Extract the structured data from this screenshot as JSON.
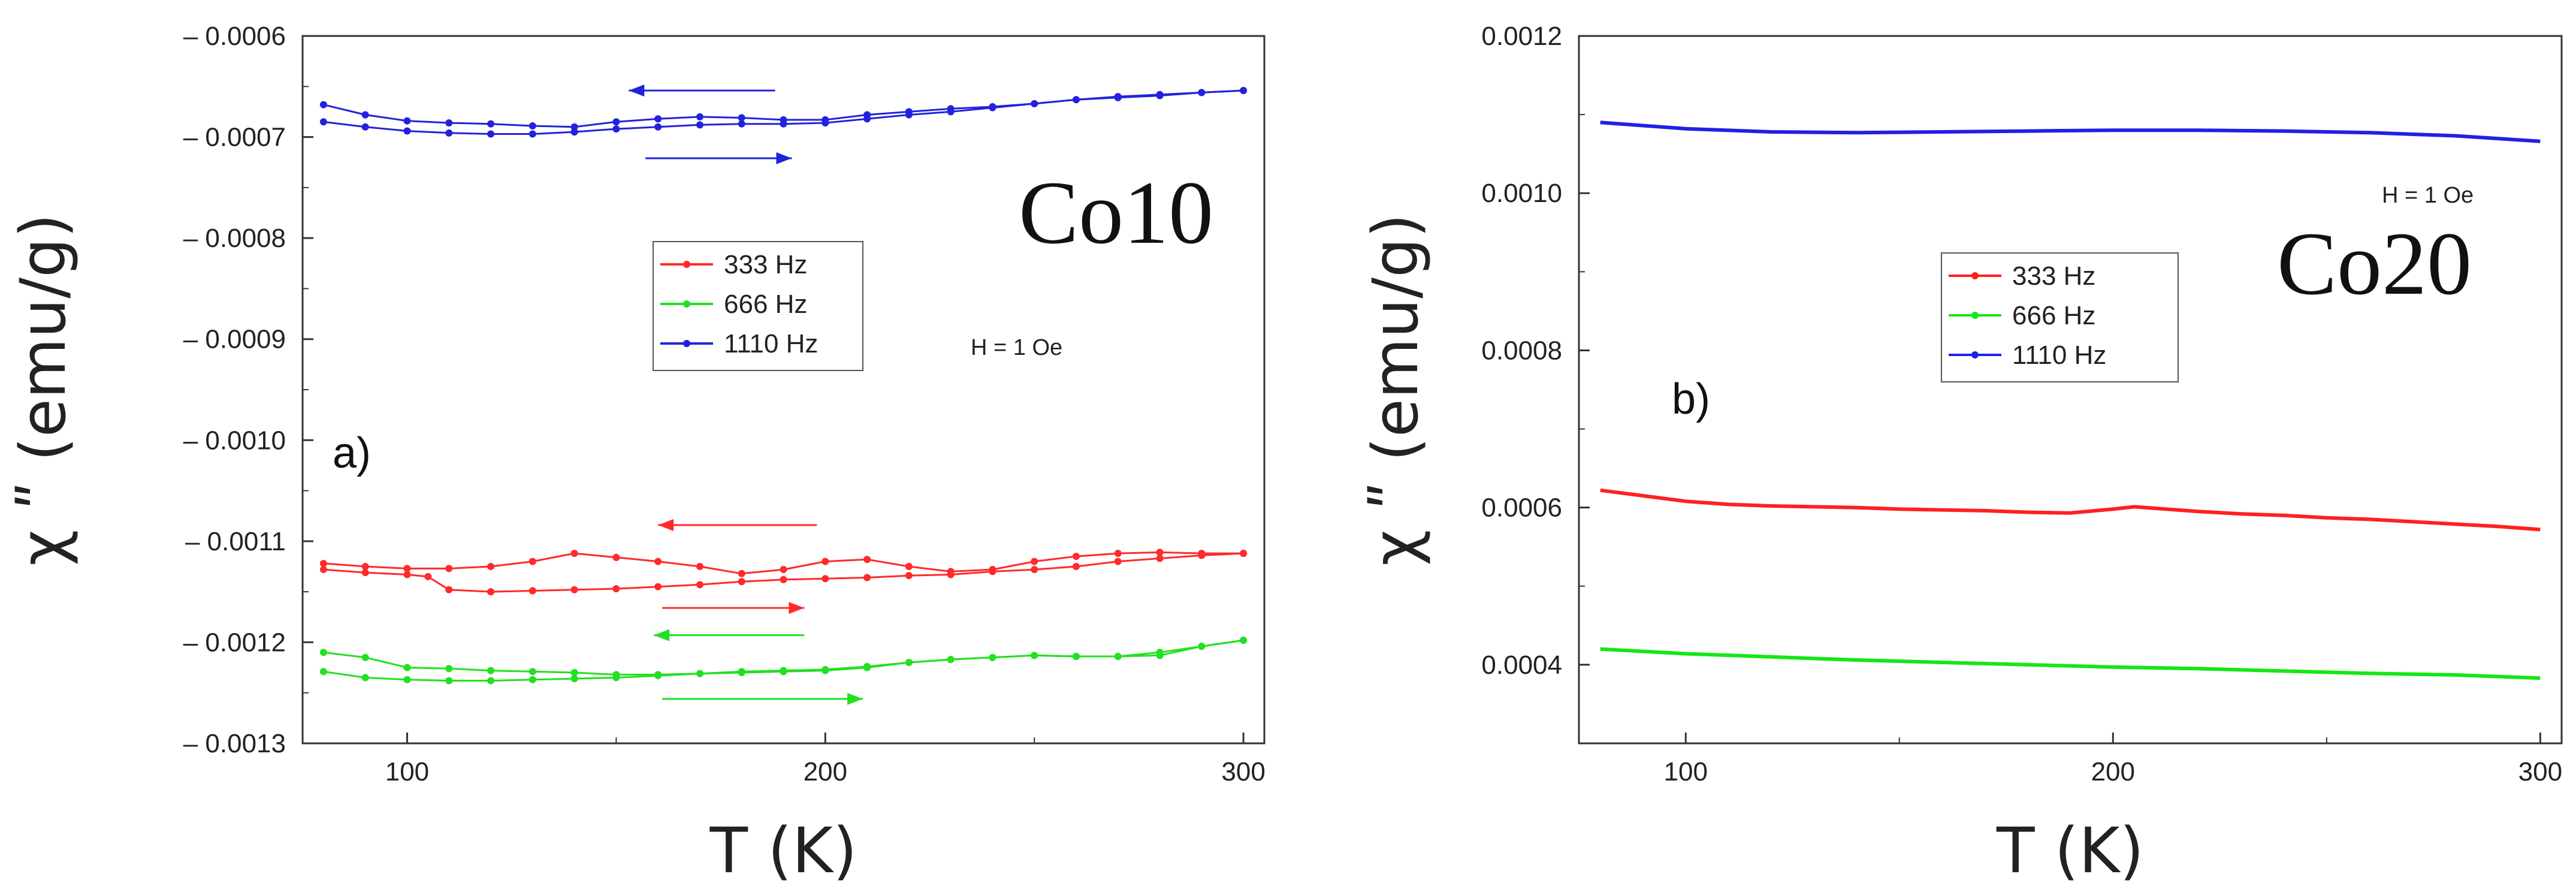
{
  "chart_data": [
    {
      "type": "line",
      "panel_label": "a)",
      "sample": "Co10",
      "field": "H = 1 Oe",
      "xlabel": "T  (K)",
      "ylabel": "χ ʺ  (emu/g)",
      "xlim": [
        75,
        305
      ],
      "ylim": [
        -0.0013,
        -0.0006
      ],
      "xticks": [
        100,
        200,
        300
      ],
      "xtick_labels": [
        "100",
        "200",
        "300"
      ],
      "yticks": [
        -0.0006,
        -0.0007,
        -0.0008,
        -0.0009,
        -0.001,
        -0.0011,
        -0.0012,
        -0.0013
      ],
      "ytick_labels": [
        "– 0.0006",
        "– 0.0007",
        "– 0.0008",
        "– 0.0009",
        "– 0.0010",
        "– 0.0011",
        "– 0.0012",
        "– 0.0013"
      ],
      "legend": [
        "333   Hz",
        "666   Hz",
        "1110 Hz"
      ],
      "series": [
        {
          "name": "333 Hz (cooling)",
          "color": "#ff2a2a",
          "markers": true,
          "x": [
            80,
            90,
            100,
            110,
            120,
            130,
            140,
            150,
            160,
            170,
            180,
            190,
            200,
            210,
            220,
            230,
            240,
            250,
            260,
            270,
            280,
            290,
            300
          ],
          "y": [
            -0.001122,
            -0.001125,
            -0.001127,
            -0.001127,
            -0.001125,
            -0.00112,
            -0.001112,
            -0.001116,
            -0.00112,
            -0.001125,
            -0.001132,
            -0.001128,
            -0.00112,
            -0.001118,
            -0.001125,
            -0.00113,
            -0.001128,
            -0.00112,
            -0.001115,
            -0.001112,
            -0.001111,
            -0.001112,
            -0.001112
          ]
        },
        {
          "name": "333 Hz (heating)",
          "color": "#ff2a2a",
          "markers": true,
          "x": [
            80,
            90,
            100,
            105,
            110,
            120,
            130,
            140,
            150,
            160,
            170,
            180,
            190,
            200,
            210,
            220,
            230,
            240,
            250,
            260,
            270,
            280,
            290,
            300
          ],
          "y": [
            -0.001128,
            -0.001131,
            -0.001133,
            -0.001135,
            -0.001148,
            -0.00115,
            -0.001149,
            -0.001148,
            -0.001147,
            -0.001145,
            -0.001143,
            -0.00114,
            -0.001138,
            -0.001137,
            -0.001136,
            -0.001134,
            -0.001133,
            -0.00113,
            -0.001128,
            -0.001125,
            -0.00112,
            -0.001117,
            -0.001114,
            -0.001112
          ]
        },
        {
          "name": "666 Hz (cooling)",
          "color": "#22e022",
          "markers": true,
          "x": [
            80,
            90,
            100,
            110,
            120,
            130,
            140,
            150,
            160,
            170,
            180,
            190,
            200,
            210,
            220,
            230,
            240,
            250,
            260,
            270,
            280,
            290,
            300
          ],
          "y": [
            -0.00121,
            -0.001215,
            -0.001225,
            -0.001226,
            -0.001228,
            -0.001229,
            -0.00123,
            -0.001232,
            -0.001232,
            -0.001231,
            -0.00123,
            -0.001229,
            -0.001228,
            -0.001225,
            -0.00122,
            -0.001217,
            -0.001215,
            -0.001213,
            -0.001214,
            -0.001214,
            -0.001213,
            -0.001204,
            -0.001198
          ]
        },
        {
          "name": "666 Hz (heating)",
          "color": "#22e022",
          "markers": true,
          "x": [
            80,
            90,
            100,
            110,
            120,
            130,
            140,
            150,
            160,
            170,
            180,
            190,
            200,
            210,
            220,
            230,
            240,
            250,
            260,
            270,
            280,
            290,
            300
          ],
          "y": [
            -0.001229,
            -0.001235,
            -0.001237,
            -0.001238,
            -0.001238,
            -0.001237,
            -0.001236,
            -0.001235,
            -0.001233,
            -0.001231,
            -0.001229,
            -0.001228,
            -0.001227,
            -0.001224,
            -0.00122,
            -0.001217,
            -0.001215,
            -0.001213,
            -0.001214,
            -0.001214,
            -0.00121,
            -0.001204,
            -0.001198
          ]
        },
        {
          "name": "1110 Hz (cooling)",
          "color": "#2222dd",
          "markers": true,
          "x": [
            80,
            90,
            100,
            110,
            120,
            130,
            140,
            150,
            160,
            170,
            180,
            190,
            200,
            210,
            220,
            230,
            240,
            250,
            260,
            270,
            280,
            290,
            300
          ],
          "y": [
            -0.000668,
            -0.000678,
            -0.000684,
            -0.000686,
            -0.000687,
            -0.000689,
            -0.00069,
            -0.000685,
            -0.000682,
            -0.00068,
            -0.000681,
            -0.000683,
            -0.000683,
            -0.000678,
            -0.000675,
            -0.000672,
            -0.00067,
            -0.000667,
            -0.000663,
            -0.000661,
            -0.000659,
            -0.000656,
            -0.000654
          ]
        },
        {
          "name": "1110 Hz (heating)",
          "color": "#2222dd",
          "markers": true,
          "x": [
            80,
            90,
            100,
            110,
            120,
            130,
            140,
            150,
            160,
            170,
            180,
            190,
            200,
            210,
            220,
            230,
            240,
            250,
            260,
            270,
            280,
            290,
            300
          ],
          "y": [
            -0.000685,
            -0.00069,
            -0.000694,
            -0.000696,
            -0.000697,
            -0.000697,
            -0.000695,
            -0.000692,
            -0.00069,
            -0.000688,
            -0.000687,
            -0.000687,
            -0.000686,
            -0.000682,
            -0.000678,
            -0.000675,
            -0.000671,
            -0.000667,
            -0.000663,
            -0.00066,
            -0.000658,
            -0.000656,
            -0.000654
          ]
        }
      ],
      "arrows": [
        {
          "color": "#2222dd",
          "direction": "left",
          "x": [
            153,
            188
          ],
          "y": -0.000654
        },
        {
          "color": "#2222dd",
          "direction": "right",
          "x": [
            157,
            192
          ],
          "y": -0.000721
        },
        {
          "color": "#ff2a2a",
          "direction": "left",
          "x": [
            160,
            198
          ],
          "y": -0.001084
        },
        {
          "color": "#ff2a2a",
          "direction": "right",
          "x": [
            161,
            195
          ],
          "y": -0.001166
        },
        {
          "color": "#22e022",
          "direction": "left",
          "x": [
            159,
            195
          ],
          "y": -0.001193
        },
        {
          "color": "#22e022",
          "direction": "right",
          "x": [
            161,
            209
          ],
          "y": -0.001256
        }
      ]
    },
    {
      "type": "line",
      "panel_label": "b)",
      "sample": "Co20",
      "field": "H = 1 Oe",
      "xlabel": "T  (K)",
      "ylabel": "χ ʺ  (emu/g)",
      "xlim": [
        75,
        305
      ],
      "ylim": [
        0.0003,
        0.0012
      ],
      "xticks": [
        100,
        200,
        300
      ],
      "xtick_labels": [
        "100",
        "200",
        "300"
      ],
      "yticks": [
        0.0004,
        0.0006,
        0.0008,
        0.001,
        0.0012
      ],
      "ytick_labels": [
        "0.0004",
        "0.0006",
        "0.0008",
        "0.0010",
        "0.0012"
      ],
      "legend": [
        "333   Hz",
        "666   Hz",
        "1110 Hz"
      ],
      "series": [
        {
          "name": "333 Hz",
          "color": "#ff2020",
          "markers": false,
          "x": [
            80,
            90,
            100,
            110,
            120,
            130,
            140,
            150,
            160,
            170,
            180,
            190,
            200,
            205,
            210,
            220,
            230,
            240,
            250,
            260,
            270,
            280,
            290,
            300
          ],
          "y": [
            0.000622,
            0.000615,
            0.000608,
            0.000604,
            0.000602,
            0.000601,
            0.0006,
            0.000598,
            0.000597,
            0.000596,
            0.000594,
            0.000593,
            0.000598,
            0.000601,
            0.000599,
            0.000595,
            0.000592,
            0.00059,
            0.000587,
            0.000585,
            0.000582,
            0.000579,
            0.000576,
            0.000572
          ]
        },
        {
          "name": "666 Hz",
          "color": "#14e814",
          "markers": false,
          "x": [
            80,
            100,
            120,
            140,
            160,
            180,
            200,
            220,
            240,
            260,
            280,
            300
          ],
          "y": [
            0.00042,
            0.000414,
            0.00041,
            0.000406,
            0.000403,
            0.0004,
            0.000397,
            0.000395,
            0.000392,
            0.000389,
            0.000387,
            0.000383
          ]
        },
        {
          "name": "1110 Hz",
          "color": "#2020e6",
          "markers": false,
          "x": [
            80,
            100,
            120,
            140,
            160,
            180,
            200,
            220,
            240,
            260,
            280,
            300
          ],
          "y": [
            0.00109,
            0.001082,
            0.001078,
            0.001077,
            0.001078,
            0.001079,
            0.00108,
            0.00108,
            0.001079,
            0.001077,
            0.001073,
            0.001066
          ]
        }
      ]
    }
  ]
}
